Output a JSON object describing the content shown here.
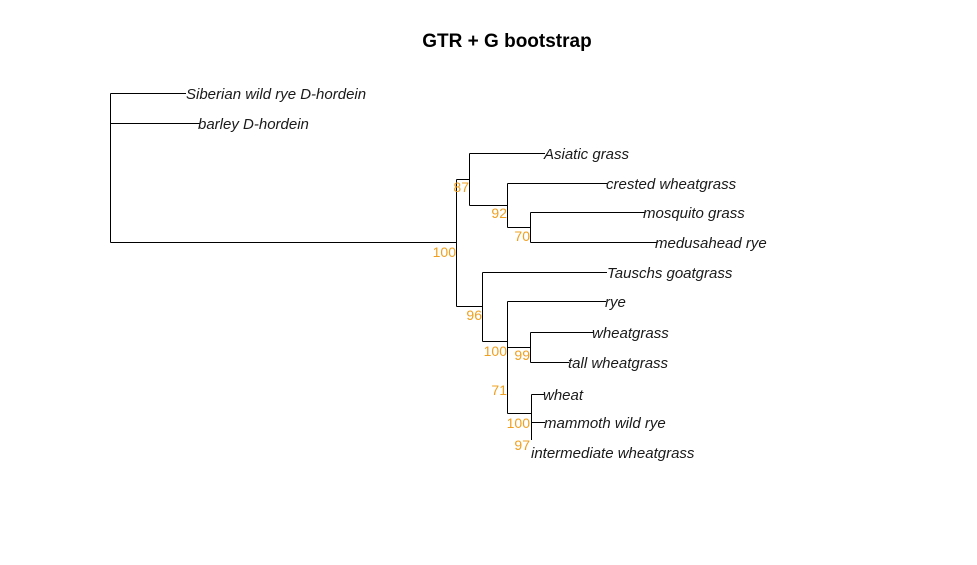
{
  "title": "GTR + G bootstrap",
  "colors": {
    "branch": "#000000",
    "bootstrap": "#f0a020",
    "tip_text": "#1a1a1a"
  },
  "tips": [
    "Siberian wild rye D-hordein",
    "barley D-hordein",
    "Asiatic grass",
    "crested wheatgrass",
    "mosquito grass",
    "medusahead rye",
    "Tauschs goatgrass",
    "rye",
    "wheatgrass",
    "tall wheatgrass",
    "wheat",
    "mammoth wild rye",
    "intermediate wheatgrass"
  ],
  "bootstrap": [
    "87",
    "92",
    "70",
    "100",
    "96",
    "100",
    "99",
    "71",
    "100",
    "97"
  ]
}
